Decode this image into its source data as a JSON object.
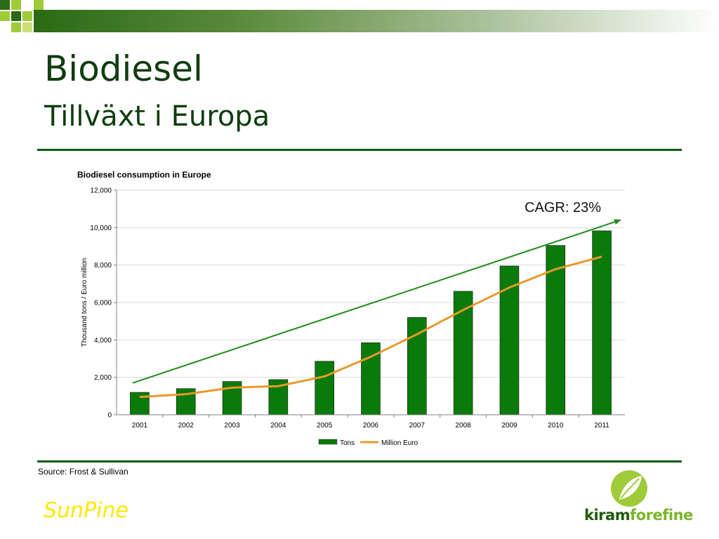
{
  "slide": {
    "title": "Biodiesel",
    "subtitle": "Tillväxt i Europa",
    "source": "Source: Frost & Sullivan",
    "brand_left": "SunPine",
    "brand_right_part1": "kiram",
    "brand_right_part2": "forefine"
  },
  "colors": {
    "title": "#0f3d0f",
    "rule": "#0f5a0f",
    "bars": "#0a7a0a",
    "line": "#e8992a",
    "trend": "#1f8a1f",
    "brand_left": "#ffe800"
  },
  "chart_data": {
    "type": "bar",
    "title": "Biodiesel consumption in Europe",
    "xlabel": "",
    "ylabel": "Thousand tons / Euro million",
    "categories": [
      "2001",
      "2002",
      "2003",
      "2004",
      "2005",
      "2006",
      "2007",
      "2008",
      "2009",
      "2010",
      "2011"
    ],
    "ylim": [
      0,
      12000
    ],
    "yticks": [
      0,
      2000,
      4000,
      6000,
      8000,
      10000,
      12000
    ],
    "ytick_labels": [
      "0",
      "2,000",
      "4,000",
      "6,000",
      "8,000",
      "10,000",
      "12,000"
    ],
    "grid": true,
    "legend": "bottom-center",
    "series": [
      {
        "name": "Tons",
        "type": "bar",
        "values": [
          1200,
          1400,
          1780,
          1880,
          2860,
          3850,
          5200,
          6600,
          7950,
          9050,
          9830
        ]
      },
      {
        "name": "Million Euro",
        "type": "line",
        "values": [
          950,
          1100,
          1450,
          1530,
          2050,
          3100,
          4300,
          5600,
          6800,
          7780,
          8450
        ]
      }
    ],
    "annotation": {
      "text": "CAGR: 23%",
      "trend_start": {
        "category": "2001",
        "value": 1700
      },
      "trend_end": {
        "category": "2011",
        "value": 10400
      }
    }
  }
}
